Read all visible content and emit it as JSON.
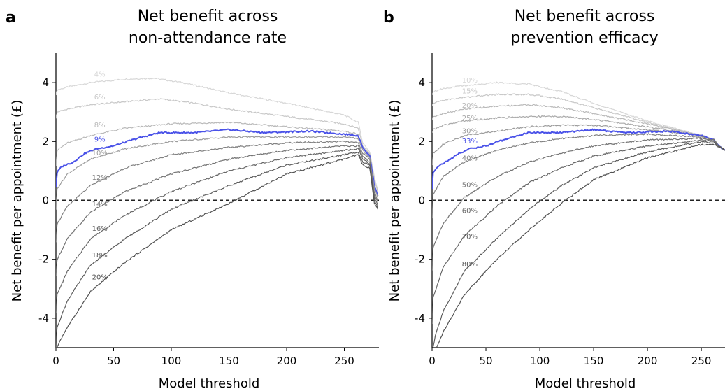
{
  "chart_data": [
    {
      "panel": "a",
      "type": "line",
      "title": [
        "Net benefit across",
        "non-attendance rate"
      ],
      "xlabel": "Model threshold",
      "ylabel": "Net benefit per appointment (£)",
      "xlim": [
        0,
        280
      ],
      "ylim": [
        -5,
        5
      ],
      "xticks": [
        0,
        50,
        100,
        150,
        200,
        250
      ],
      "yticks": [
        -4,
        -2,
        0,
        2,
        4
      ],
      "reference_line": {
        "y": 0,
        "style": "dashed"
      },
      "highlight_color": "#4a52e8",
      "series": [
        {
          "name": "4%",
          "x": [
            0,
            1,
            10,
            30,
            60,
            85,
            110,
            150,
            200,
            250,
            262,
            266,
            272,
            276,
            279
          ],
          "y": [
            3.6,
            3.75,
            3.85,
            4.0,
            4.12,
            4.15,
            4.0,
            3.65,
            3.3,
            2.9,
            2.65,
            1.95,
            1.65,
            0.8,
            0.35
          ]
        },
        {
          "name": "6%",
          "x": [
            0,
            1,
            10,
            30,
            60,
            90,
            120,
            150,
            200,
            250,
            262,
            266,
            272,
            276,
            279
          ],
          "y": [
            2.8,
            3.0,
            3.1,
            3.25,
            3.35,
            3.45,
            3.3,
            3.1,
            2.85,
            2.6,
            2.45,
            1.85,
            1.6,
            0.7,
            0.3
          ]
        },
        {
          "name": "8%",
          "x": [
            0,
            1,
            10,
            30,
            60,
            100,
            150,
            200,
            250,
            262,
            266,
            272,
            276,
            279
          ],
          "y": [
            1.2,
            1.7,
            1.95,
            2.2,
            2.45,
            2.6,
            2.65,
            2.5,
            2.35,
            2.25,
            1.8,
            1.55,
            0.5,
            0.2
          ]
        },
        {
          "name": "9%",
          "highlight": true,
          "x": [
            0,
            1,
            5,
            15,
            25,
            35,
            50,
            70,
            90,
            120,
            150,
            180,
            220,
            250,
            262,
            266,
            272,
            276,
            279
          ],
          "y": [
            0.45,
            0.95,
            1.15,
            1.3,
            1.6,
            1.75,
            1.85,
            2.1,
            2.3,
            2.3,
            2.4,
            2.3,
            2.35,
            2.25,
            2.2,
            1.8,
            1.5,
            0.5,
            0.15
          ]
        },
        {
          "name": "10%",
          "x": [
            0,
            1,
            10,
            30,
            60,
            100,
            150,
            200,
            250,
            262,
            266,
            272,
            276,
            279
          ],
          "y": [
            -0.3,
            0.4,
            0.9,
            1.4,
            1.75,
            2.0,
            2.15,
            2.15,
            2.15,
            2.1,
            1.7,
            1.45,
            0.4,
            0.1
          ]
        },
        {
          "name": "12%",
          "x": [
            0,
            1,
            10,
            30,
            60,
            100,
            150,
            200,
            250,
            262,
            266,
            272,
            276,
            279
          ],
          "y": [
            -1.4,
            -0.8,
            -0.2,
            0.5,
            1.1,
            1.55,
            1.8,
            1.95,
            2.0,
            1.95,
            1.6,
            1.4,
            0.3,
            0.0
          ]
        },
        {
          "name": "14%",
          "x": [
            0,
            1,
            10,
            30,
            60,
            100,
            150,
            200,
            250,
            262,
            266,
            272,
            276,
            279
          ],
          "y": [
            -2.6,
            -2.0,
            -1.3,
            -0.4,
            0.3,
            0.9,
            1.4,
            1.7,
            1.85,
            1.85,
            1.5,
            1.3,
            0.2,
            -0.05
          ]
        },
        {
          "name": "16%",
          "x": [
            0,
            1,
            10,
            30,
            60,
            100,
            150,
            200,
            250,
            262,
            266,
            272,
            276,
            279
          ],
          "y": [
            -3.8,
            -3.2,
            -2.4,
            -1.3,
            -0.5,
            0.3,
            1.0,
            1.45,
            1.7,
            1.75,
            1.4,
            1.25,
            0.1,
            -0.15
          ]
        },
        {
          "name": "18%",
          "x": [
            0,
            1,
            10,
            30,
            60,
            100,
            150,
            200,
            250,
            262,
            266,
            272,
            276,
            279
          ],
          "y": [
            -5.0,
            -4.3,
            -3.4,
            -2.2,
            -1.3,
            -0.3,
            0.5,
            1.2,
            1.55,
            1.65,
            1.3,
            1.2,
            0.0,
            -0.25
          ]
        },
        {
          "name": "20%",
          "x": [
            1,
            3,
            10,
            30,
            60,
            100,
            150,
            200,
            250,
            262,
            266,
            272,
            276,
            279
          ],
          "y": [
            -5.0,
            -4.8,
            -4.3,
            -3.1,
            -2.1,
            -1.0,
            -0.1,
            0.9,
            1.4,
            1.55,
            1.2,
            1.1,
            -0.1,
            -0.3
          ]
        }
      ],
      "label_x": 38,
      "label_y": [
        4.2,
        3.43,
        2.48,
        2.0,
        1.53,
        0.7,
        -0.2,
        -1.03,
        -1.93,
        -2.68
      ]
    },
    {
      "panel": "b",
      "type": "line",
      "title": [
        "Net benefit across",
        "prevention efficacy"
      ],
      "xlabel": "Model threshold",
      "ylabel": "Net benefit per appointment (£)",
      "xlim": [
        0,
        272
      ],
      "ylim": [
        -5,
        5
      ],
      "xticks": [
        0,
        50,
        100,
        150,
        200,
        250
      ],
      "yticks": [
        -4,
        -2,
        0,
        2,
        4
      ],
      "reference_line": {
        "y": 0,
        "style": "dashed"
      },
      "highlight_color": "#4a52e8",
      "series": [
        {
          "name": "10%",
          "x": [
            0,
            1,
            10,
            30,
            60,
            90,
            120,
            150,
            200,
            250,
            262,
            266,
            270,
            272
          ],
          "y": [
            3.6,
            3.7,
            3.8,
            3.9,
            4.0,
            3.95,
            3.7,
            3.3,
            2.7,
            2.2,
            2.05,
            1.85,
            1.75,
            1.7
          ]
        },
        {
          "name": "15%",
          "x": [
            0,
            1,
            10,
            30,
            60,
            90,
            120,
            150,
            200,
            250,
            262,
            266,
            270,
            272
          ],
          "y": [
            3.2,
            3.3,
            3.4,
            3.5,
            3.6,
            3.6,
            3.45,
            3.15,
            2.65,
            2.2,
            2.05,
            1.85,
            1.75,
            1.7
          ]
        },
        {
          "name": "20%",
          "x": [
            0,
            1,
            10,
            30,
            60,
            90,
            120,
            150,
            200,
            250,
            262,
            266,
            270,
            272
          ],
          "y": [
            2.75,
            2.85,
            2.95,
            3.1,
            3.2,
            3.25,
            3.15,
            2.95,
            2.6,
            2.2,
            2.05,
            1.85,
            1.75,
            1.7
          ]
        },
        {
          "name": "25%",
          "x": [
            0,
            1,
            10,
            30,
            60,
            90,
            120,
            150,
            200,
            250,
            262,
            266,
            270,
            272
          ],
          "y": [
            2.3,
            2.4,
            2.55,
            2.7,
            2.8,
            2.85,
            2.85,
            2.75,
            2.5,
            2.2,
            2.05,
            1.85,
            1.75,
            1.7
          ]
        },
        {
          "name": "30%",
          "x": [
            0,
            1,
            10,
            30,
            60,
            90,
            120,
            150,
            200,
            250,
            262,
            266,
            270,
            272
          ],
          "y": [
            1.2,
            1.6,
            1.9,
            2.2,
            2.35,
            2.5,
            2.55,
            2.55,
            2.4,
            2.2,
            2.05,
            1.85,
            1.75,
            1.7
          ]
        },
        {
          "name": "33%",
          "highlight": true,
          "x": [
            0,
            1,
            5,
            15,
            25,
            35,
            50,
            70,
            90,
            120,
            150,
            180,
            220,
            250,
            262,
            266,
            270,
            272
          ],
          "y": [
            0.4,
            0.95,
            1.15,
            1.35,
            1.6,
            1.75,
            1.85,
            2.1,
            2.3,
            2.3,
            2.4,
            2.3,
            2.35,
            2.2,
            2.05,
            1.85,
            1.75,
            1.7
          ]
        },
        {
          "name": "40%",
          "x": [
            0,
            1,
            10,
            30,
            60,
            90,
            120,
            150,
            200,
            250,
            262,
            266,
            270,
            272
          ],
          "y": [
            -0.6,
            0.2,
            0.8,
            1.3,
            1.7,
            1.95,
            2.1,
            2.2,
            2.25,
            2.15,
            2.05,
            1.85,
            1.75,
            1.7
          ]
        },
        {
          "name": "50%",
          "x": [
            0,
            1,
            10,
            30,
            60,
            90,
            120,
            150,
            200,
            250,
            262,
            266,
            270,
            272
          ],
          "y": [
            -2.4,
            -1.6,
            -0.8,
            0.1,
            0.8,
            1.3,
            1.6,
            1.85,
            2.05,
            2.1,
            2.05,
            1.85,
            1.75,
            1.7
          ]
        },
        {
          "name": "60%",
          "x": [
            0,
            1,
            10,
            30,
            60,
            90,
            120,
            150,
            200,
            250,
            262,
            266,
            270,
            272
          ],
          "y": [
            -4.2,
            -3.3,
            -2.3,
            -1.2,
            -0.2,
            0.6,
            1.1,
            1.5,
            1.85,
            2.05,
            2.0,
            1.85,
            1.75,
            1.7
          ]
        },
        {
          "name": "70%",
          "x": [
            1,
            3,
            10,
            30,
            60,
            90,
            120,
            150,
            200,
            250,
            262,
            266,
            270,
            272
          ],
          "y": [
            -5.0,
            -4.6,
            -3.8,
            -2.4,
            -1.3,
            -0.3,
            0.5,
            1.1,
            1.65,
            2.0,
            1.95,
            1.85,
            1.75,
            1.7
          ]
        },
        {
          "name": "80%",
          "x": [
            4,
            10,
            30,
            60,
            90,
            120,
            150,
            200,
            250,
            262,
            266,
            270,
            272
          ],
          "y": [
            -5.0,
            -4.5,
            -3.2,
            -2.0,
            -1.0,
            -0.1,
            0.7,
            1.45,
            1.9,
            1.9,
            1.8,
            1.75,
            1.7
          ]
        }
      ],
      "label_x": 35,
      "label_y": [
        4.0,
        3.63,
        3.15,
        2.72,
        2.28,
        1.93,
        1.35,
        0.45,
        -0.43,
        -1.31,
        -2.25
      ]
    }
  ]
}
